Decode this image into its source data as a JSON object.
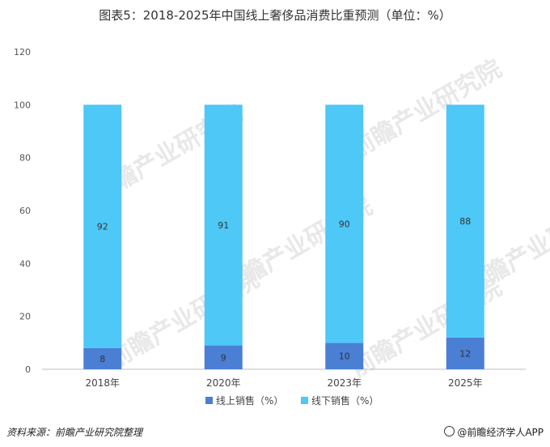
{
  "chart_data": {
    "type": "bar",
    "stacked": true,
    "title": "图表5：2018-2025年中国线上奢侈品消费比重预测（单位：%）",
    "categories": [
      "2018年",
      "2020年",
      "2023年",
      "2025年"
    ],
    "series": [
      {
        "name": "线上销售（%）",
        "values": [
          8,
          9,
          10,
          12
        ],
        "color": "#4a7fd4"
      },
      {
        "name": "线下销售（%）",
        "values": [
          92,
          91,
          90,
          88
        ],
        "color": "#4dc8f7"
      }
    ],
    "ylim": [
      0,
      120
    ],
    "yticks": [
      "0",
      "20",
      "40",
      "60",
      "80",
      "100",
      "120"
    ],
    "legend_position": "bottom",
    "grid": false
  },
  "footer": {
    "source": "资料来源：前瞻产业研究院整理",
    "brand": "@前瞻经济学人APP"
  },
  "watermark_text": "前瞻产业研究院"
}
